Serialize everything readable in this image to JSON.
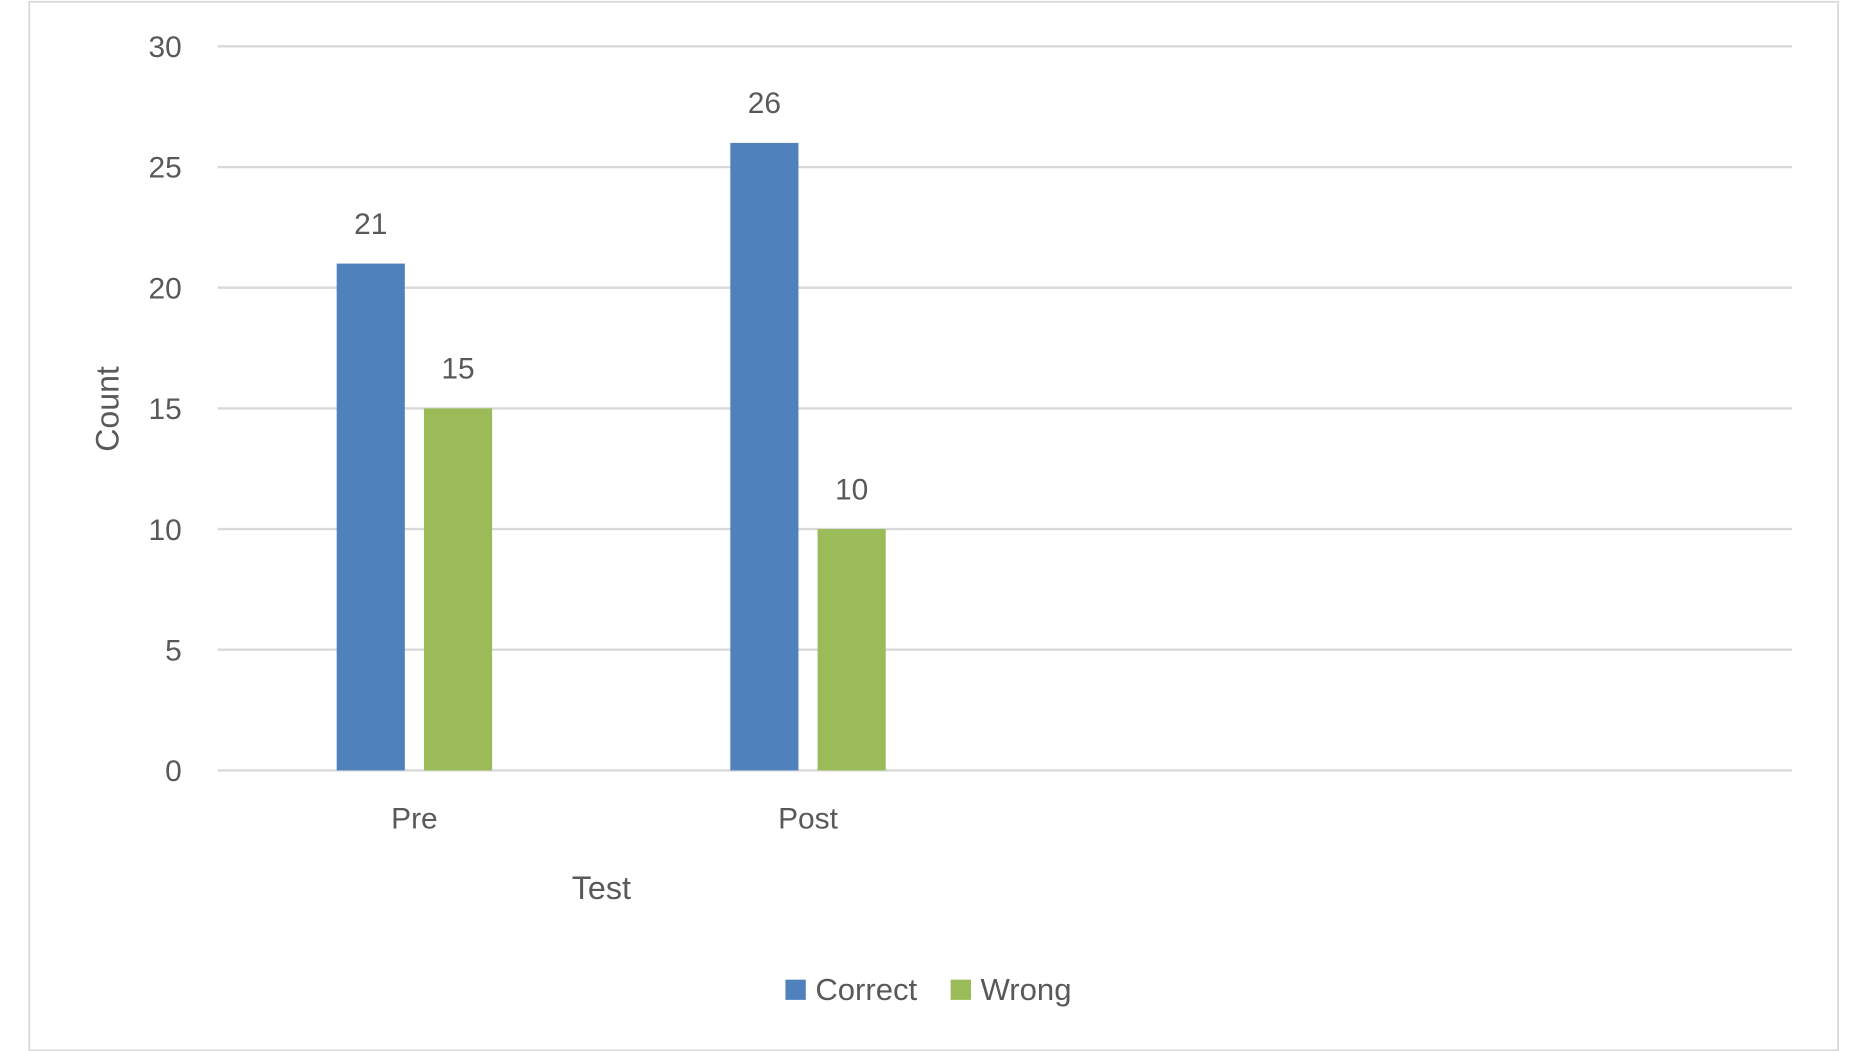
{
  "chart_data": {
    "type": "bar",
    "title": "",
    "xlabel": "Test",
    "ylabel": "Count",
    "categories": [
      "Pre",
      "Post"
    ],
    "series": [
      {
        "name": "Correct",
        "values": [
          21,
          26
        ],
        "color": "#4f81bd"
      },
      {
        "name": "Wrong",
        "values": [
          15,
          10
        ],
        "color": "#9bbb59"
      }
    ],
    "ylim": [
      0,
      30
    ],
    "yticks": [
      0,
      5,
      10,
      15,
      20,
      25,
      30
    ],
    "grid": true,
    "data_labels": true,
    "legend_position": "bottom"
  }
}
